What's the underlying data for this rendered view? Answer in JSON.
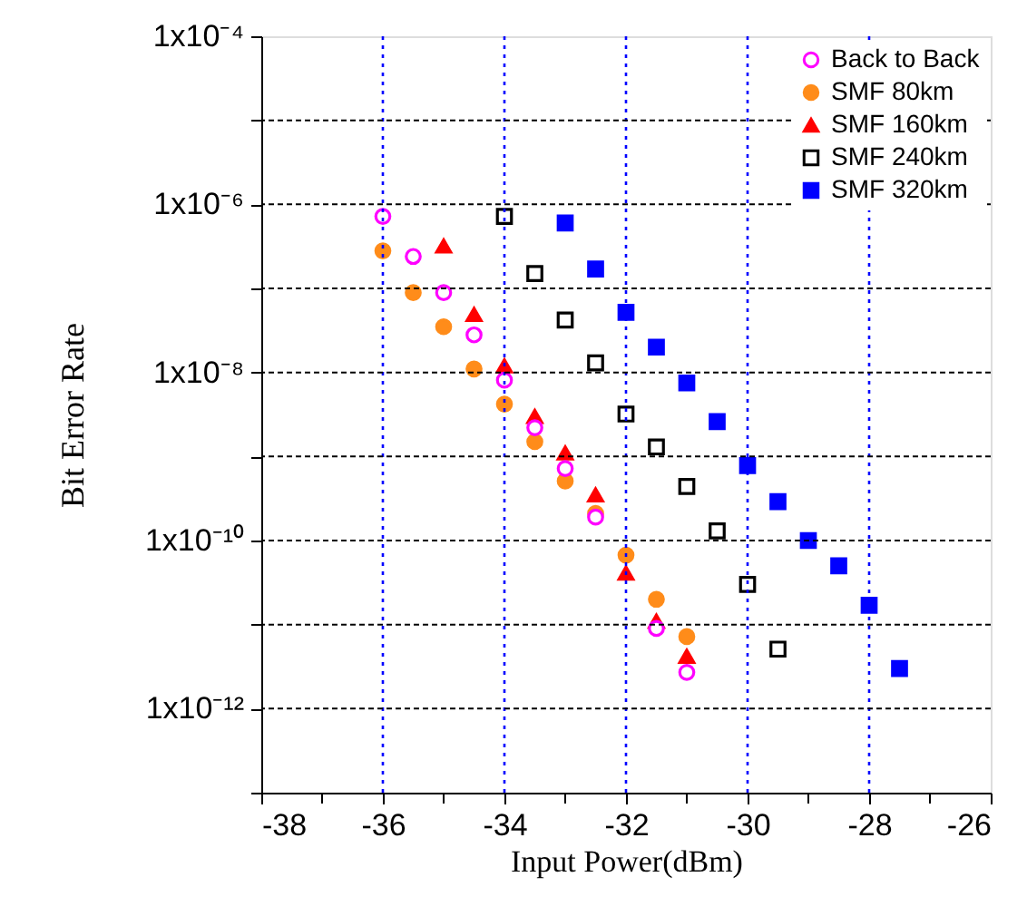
{
  "chart_data": {
    "type": "scatter",
    "xlabel": "Input Power(dBm)",
    "ylabel": "Bit Error Rate",
    "log": true,
    "grid": true,
    "legend": "top right",
    "xlim": [
      -38,
      -26
    ],
    "xticks": [
      -38,
      {
        "value": -37,
        "label": null
      },
      -36,
      {
        "value": -35,
        "label": null
      },
      -34,
      {
        "value": -33,
        "label": null
      },
      -32,
      {
        "value": -31,
        "label": null
      },
      -30,
      {
        "value": -29,
        "label": null
      },
      -28,
      {
        "value": -27,
        "label": null
      },
      -26
    ],
    "ylim": [
      1e-13,
      0.0001
    ],
    "yticks": [
      {
        "value": 1e-13,
        "label": null
      },
      {
        "value": 1e-12,
        "label": "1x10⁻¹²"
      },
      {
        "value": 1e-11,
        "label": null
      },
      {
        "value": 1e-10,
        "label": "1x10⁻¹⁰"
      },
      {
        "value": 1e-09,
        "label": null
      },
      {
        "value": 1e-08,
        "label": "1x10⁻⁸"
      },
      {
        "value": 1e-07,
        "label": null
      },
      {
        "value": 1e-06,
        "label": "1x10⁻⁶"
      },
      {
        "value": 1e-05,
        "label": null
      },
      {
        "value": 0.0001,
        "label": "1x10⁻⁴"
      }
    ],
    "series": [
      {
        "name": "Back to Back",
        "color": "#ff00ff",
        "marker": "circle",
        "x": [
          -36,
          -35.5,
          -35,
          -34.5,
          -34,
          -33.5,
          -33,
          -32.5,
          -32,
          -31.5,
          -31
        ],
        "values": [
          7.2e-07,
          2.4e-07,
          8.9e-08,
          2.8e-08,
          8.1e-09,
          2.2e-09,
          7.2e-10,
          1.9e-10,
          null,
          9e-12,
          2.7e-12
        ]
      },
      {
        "name": "SMF 80km",
        "color": "#ff8c1a",
        "marker": "circle",
        "x": [
          -36,
          -35.5,
          -35,
          -34.5,
          -34,
          -33.5,
          -33,
          -32.5,
          -32,
          -31.5,
          -31
        ],
        "values": [
          2.8e-07,
          8.9e-08,
          3.5e-08,
          1.1e-08,
          4.2e-09,
          1.5e-09,
          5.1e-10,
          2.1e-10,
          6.7e-11,
          2e-11,
          7.2e-12
        ]
      },
      {
        "name": "SMF 160km",
        "color": "#ff0000",
        "marker": "triangle",
        "x": [
          -35,
          -34.5,
          -34,
          -33.5,
          -33,
          -32.5,
          -32,
          -31.5,
          -31
        ],
        "values": [
          3.2e-07,
          4.9e-08,
          1.2e-08,
          3e-09,
          1.1e-09,
          3.5e-10,
          4.1e-11,
          1.1e-11,
          4.2e-12
        ]
      },
      {
        "name": "SMF 240km",
        "color": "#000000",
        "marker": "square",
        "x": [
          -34,
          -33.5,
          -33,
          -32.5,
          -32,
          -31.5,
          -31,
          -30.5,
          -30,
          -29.5
        ],
        "values": [
          7.2e-07,
          1.5e-07,
          4.2e-08,
          1.3e-08,
          3.2e-09,
          1.3e-09,
          4.4e-10,
          1.3e-10,
          3e-11,
          5.1e-12
        ]
      },
      {
        "name": "SMF 320km",
        "color": "#0000ff",
        "marker": "square",
        "x": [
          -33,
          -32.5,
          -32,
          -31.5,
          -31,
          -30.5,
          -30,
          -29.5,
          -29,
          -28.5,
          -28,
          -27.5
        ],
        "values": [
          6e-07,
          1.7e-07,
          5.2e-08,
          2e-08,
          7.5e-09,
          2.6e-09,
          7.8e-10,
          2.9e-10,
          1e-10,
          5e-11,
          1.7e-11,
          3e-12
        ]
      }
    ]
  }
}
